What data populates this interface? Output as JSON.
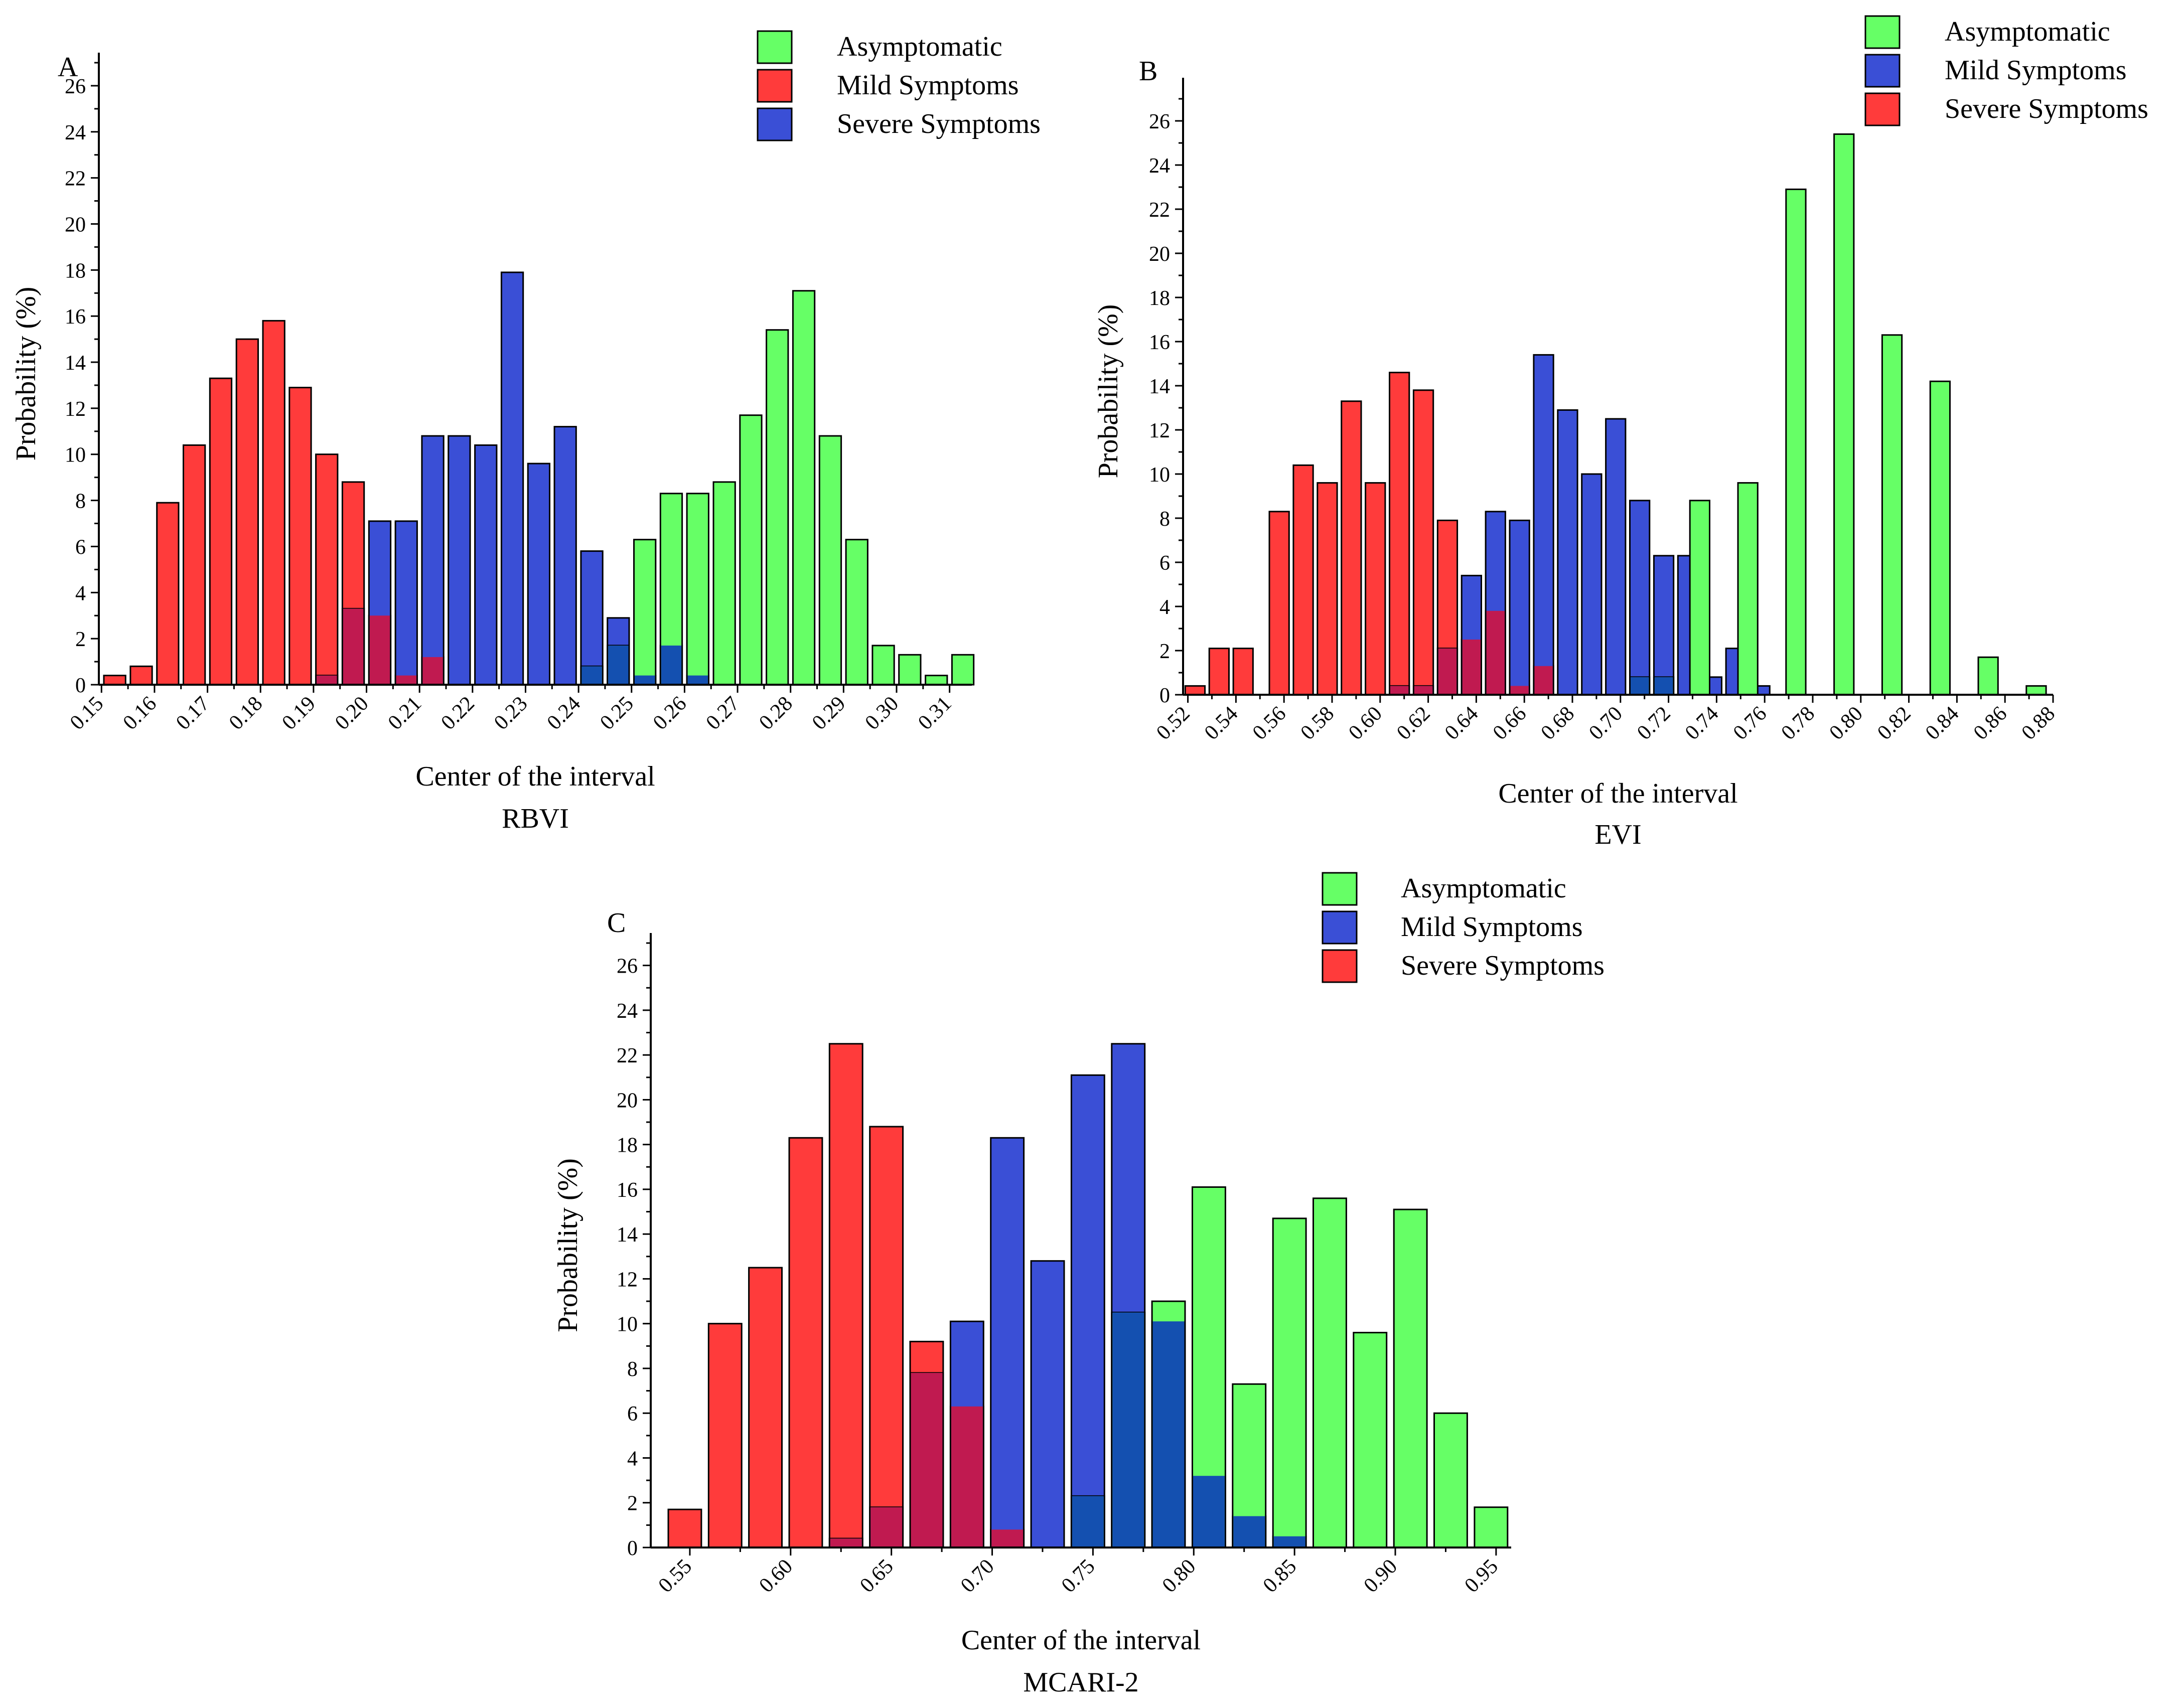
{
  "colors": {
    "asymptomatic": "#66ff66",
    "red": "#ff3b3b",
    "blue": "#3a4fd6",
    "overlap_red_blue": "#c01a50",
    "overlap_blue_red": "#3220b8",
    "overlap_blue_green": "#1450b0",
    "overlap_green_red": "#c8c860"
  },
  "chart_data": [
    {
      "panel": "A",
      "type": "bar",
      "xlabel": "Center of the interval",
      "index_name": "RBVI",
      "ylabel": "Probability (%)",
      "ylim": [
        0,
        27
      ],
      "yticks": [
        0,
        2,
        4,
        6,
        8,
        10,
        12,
        14,
        16,
        18,
        20,
        22,
        24,
        26
      ],
      "xlim": [
        0.1495,
        0.3142
      ],
      "xticks": [
        "0.15",
        "0.16",
        "0.17",
        "0.18",
        "0.19",
        "0.20",
        "0.21",
        "0.22",
        "0.23",
        "0.24",
        "0.25",
        "0.26",
        "0.27",
        "0.28",
        "0.29",
        "0.30",
        "0.31"
      ],
      "bin_width": 0.005,
      "legend": [
        "Asymptomatic",
        "Mild Symptoms",
        "Severe Symptoms"
      ],
      "series": [
        {
          "name": "Mild Symptoms",
          "color": "red",
          "x": [
            0.1525,
            0.1575,
            0.1625,
            0.1675,
            0.1725,
            0.1775,
            0.1825,
            0.1875,
            0.1925,
            0.1975,
            0.2025,
            0.2075,
            0.2125
          ],
          "values": [
            0.4,
            0.8,
            7.9,
            10.4,
            13.3,
            15.0,
            15.8,
            12.9,
            10.0,
            8.8,
            3.0,
            0.4,
            1.2
          ]
        },
        {
          "name": "Severe Symptoms",
          "color": "blue",
          "x": [
            0.1925,
            0.1975,
            0.2025,
            0.2075,
            0.2125,
            0.2175,
            0.2225,
            0.2275,
            0.2325,
            0.2375,
            0.2425,
            0.2475,
            0.2525,
            0.2575,
            0.2625
          ],
          "values": [
            0.4,
            3.3,
            7.1,
            7.1,
            10.8,
            10.8,
            10.4,
            17.9,
            9.6,
            11.2,
            5.8,
            2.9,
            0.4,
            1.7,
            0.4
          ]
        },
        {
          "name": "Asymptomatic",
          "color": "asymptomatic",
          "x": [
            0.2425,
            0.2475,
            0.2525,
            0.2575,
            0.2625,
            0.2675,
            0.2725,
            0.2775,
            0.2825,
            0.2875,
            0.2925,
            0.2975,
            0.3025,
            0.3075,
            0.3125
          ],
          "values": [
            0.8,
            1.7,
            6.3,
            8.3,
            8.3,
            8.8,
            11.7,
            15.4,
            17.1,
            10.8,
            6.3,
            1.7,
            1.3,
            0.4,
            1.3
          ]
        }
      ]
    },
    {
      "panel": "B",
      "type": "bar",
      "xlabel": "Center of the interval",
      "index_name": "EVI",
      "ylabel": "Probability (%)",
      "ylim": [
        0,
        27.5
      ],
      "yticks": [
        0,
        2,
        4,
        6,
        8,
        10,
        12,
        14,
        16,
        18,
        20,
        22,
        24,
        26
      ],
      "xlim": [
        0.518,
        0.88
      ],
      "xticks": [
        "0.52",
        "0.54",
        "0.56",
        "0.58",
        "0.60",
        "0.62",
        "0.64",
        "0.66",
        "0.68",
        "0.70",
        "0.72",
        "0.74",
        "0.76",
        "0.78",
        "0.80",
        "0.82",
        "0.84",
        "0.86",
        "0.88"
      ],
      "bin_width": 0.01,
      "legend": [
        "Asymptomatic",
        "Mild Symptoms",
        "Severe Symptoms"
      ],
      "series": [
        {
          "name": "Severe Symptoms",
          "color": "red",
          "x": [
            0.523,
            0.533,
            0.543,
            0.558,
            0.568,
            0.578,
            0.588,
            0.598,
            0.608,
            0.618,
            0.628,
            0.638,
            0.648,
            0.658,
            0.668
          ],
          "values": [
            0.4,
            2.1,
            2.1,
            8.3,
            10.4,
            9.6,
            13.3,
            9.6,
            14.6,
            13.8,
            7.9,
            2.5,
            3.8,
            0.4,
            1.3
          ]
        },
        {
          "name": "Mild Symptoms",
          "color": "blue",
          "x": [
            0.608,
            0.618,
            0.628,
            0.638,
            0.648,
            0.658,
            0.668,
            0.678,
            0.688,
            0.698,
            0.708,
            0.718,
            0.728,
            0.738,
            0.748,
            0.758
          ],
          "values": [
            0.4,
            0.4,
            2.1,
            5.4,
            8.3,
            7.9,
            15.4,
            12.9,
            10.0,
            12.5,
            8.8,
            6.3,
            6.3,
            0.8,
            2.1,
            0.4
          ]
        },
        {
          "name": "Asymptomatic",
          "color": "asymptomatic",
          "x": [
            0.708,
            0.718,
            0.733,
            0.753,
            0.773,
            0.793,
            0.813,
            0.833,
            0.853,
            0.873
          ],
          "values": [
            0.8,
            0.8,
            8.8,
            9.6,
            22.9,
            25.4,
            16.3,
            14.2,
            1.7,
            0.4
          ]
        }
      ]
    },
    {
      "panel": "C",
      "type": "bar",
      "xlabel": "Center of the interval",
      "index_name": "MCARI-2",
      "ylabel": "Probability (%)",
      "ylim": [
        0,
        27
      ],
      "yticks": [
        0,
        2,
        4,
        6,
        8,
        10,
        12,
        14,
        16,
        18,
        20,
        22,
        24,
        26
      ],
      "xlim": [
        0.5306,
        0.9575
      ],
      "xticks": [
        "0.55",
        "0.60",
        "0.65",
        "0.70",
        "0.75",
        "0.80",
        "0.85",
        "0.90",
        "0.95"
      ],
      "bin_width": 0.02,
      "legend": [
        "Asymptomatic",
        "Mild Symptoms",
        "Severe Symptoms"
      ],
      "series": [
        {
          "name": "Severe Symptoms",
          "color": "red",
          "x": [
            0.5475,
            0.5675,
            0.5875,
            0.6075,
            0.6275,
            0.6475,
            0.6675,
            0.6875,
            0.7075
          ],
          "values": [
            1.7,
            10.0,
            12.5,
            18.3,
            22.5,
            18.8,
            9.2,
            6.3,
            0.8
          ]
        },
        {
          "name": "Mild Symptoms",
          "color": "blue",
          "x": [
            0.6275,
            0.6475,
            0.6675,
            0.6875,
            0.7075,
            0.7275,
            0.7475,
            0.7675,
            0.7875,
            0.8075,
            0.8275,
            0.8475
          ],
          "values": [
            0.4,
            1.8,
            7.8,
            10.1,
            18.3,
            12.8,
            21.1,
            22.5,
            10.1,
            3.2,
            1.4,
            0.5
          ]
        },
        {
          "name": "Asymptomatic",
          "color": "asymptomatic",
          "x": [
            0.7475,
            0.7675,
            0.7875,
            0.8075,
            0.8275,
            0.8475,
            0.8675,
            0.8875,
            0.9075,
            0.9275,
            0.9475
          ],
          "values": [
            2.3,
            10.5,
            11.0,
            16.1,
            7.3,
            14.7,
            15.6,
            9.6,
            15.1,
            6.0,
            1.8
          ]
        }
      ]
    }
  ]
}
